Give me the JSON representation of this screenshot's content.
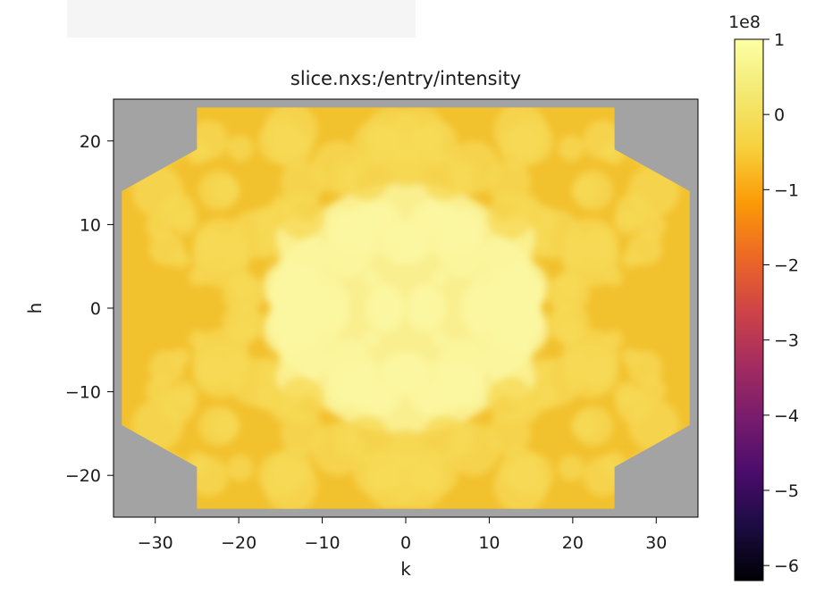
{
  "chart_data": {
    "type": "heatmap",
    "title": "slice.nxs:/entry/intensity",
    "xlabel": "k",
    "ylabel": "h",
    "xlim": [
      -35,
      35
    ],
    "ylim": [
      -25,
      25
    ],
    "x_ticks": [
      -30,
      -20,
      -10,
      0,
      10,
      20,
      30
    ],
    "y_ticks": [
      -20,
      -10,
      0,
      10,
      20
    ],
    "x_tick_labels": [
      "−30",
      "−20",
      "−10",
      "0",
      "10",
      "20",
      "30"
    ],
    "y_tick_labels": [
      "−20",
      "−10",
      "0",
      "10",
      "20"
    ],
    "background_color": "#a3a3a3",
    "colormap": "inferno",
    "colorbar": {
      "multiplier_label": "1e8",
      "vmin": -6.2,
      "vmax": 1,
      "ticks": [
        1,
        0,
        -1,
        -2,
        -3,
        -4,
        -5,
        -6
      ],
      "tick_labels": [
        "1",
        "0",
        "−1",
        "−2",
        "−3",
        "−4",
        "−5",
        "−6"
      ]
    },
    "data_extent": {
      "h_max": 24,
      "h_min": -24,
      "k_outer": 34,
      "k_inner": 25,
      "h_notch": 14,
      "h_notch_corner": 19
    },
    "colors": {
      "low_intensity": "#f2c12e",
      "mid_intensity": "#f7da55",
      "high_intensity": "#fbf7a0"
    }
  }
}
